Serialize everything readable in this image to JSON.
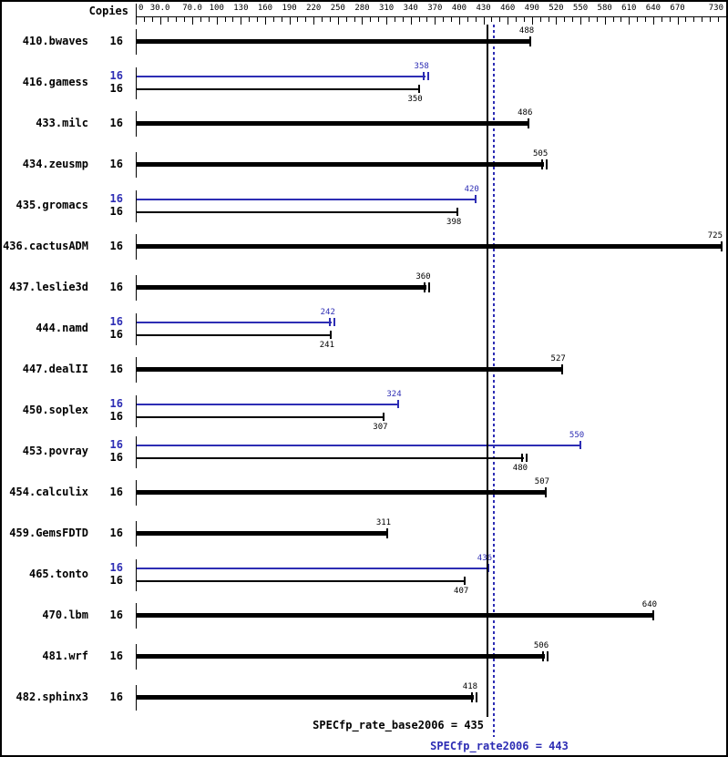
{
  "colors": {
    "base": "#000000",
    "peak": "#2d2db4",
    "background": "#ffffff"
  },
  "chart_data": {
    "type": "bar",
    "orientation": "horizontal",
    "copies_column_header": "Copies",
    "axis": {
      "min": 0,
      "max": 733,
      "minor_tick_step": 10,
      "labels": [
        {
          "value": 0,
          "text": "0"
        },
        {
          "value": 30,
          "text": "30.0"
        },
        {
          "value": 70,
          "text": "70.0"
        },
        {
          "value": 100,
          "text": "100"
        },
        {
          "value": 130,
          "text": "130"
        },
        {
          "value": 160,
          "text": "160"
        },
        {
          "value": 190,
          "text": "190"
        },
        {
          "value": 220,
          "text": "220"
        },
        {
          "value": 250,
          "text": "250"
        },
        {
          "value": 280,
          "text": "280"
        },
        {
          "value": 310,
          "text": "310"
        },
        {
          "value": 340,
          "text": "340"
        },
        {
          "value": 370,
          "text": "370"
        },
        {
          "value": 400,
          "text": "400"
        },
        {
          "value": 430,
          "text": "430"
        },
        {
          "value": 460,
          "text": "460"
        },
        {
          "value": 490,
          "text": "490"
        },
        {
          "value": 520,
          "text": "520"
        },
        {
          "value": 550,
          "text": "550"
        },
        {
          "value": 580,
          "text": "580"
        },
        {
          "value": 610,
          "text": "610"
        },
        {
          "value": 640,
          "text": "640"
        },
        {
          "value": 670,
          "text": "670"
        },
        {
          "value": 730,
          "text": "730"
        }
      ]
    },
    "benchmarks": [
      {
        "name": "410.bwaves",
        "bars": [
          {
            "kind": "base",
            "copies": 16,
            "value": 488,
            "cap": "single"
          }
        ]
      },
      {
        "name": "416.gamess",
        "bars": [
          {
            "kind": "peak",
            "copies": 16,
            "value": 358,
            "cap": "double"
          },
          {
            "kind": "base",
            "copies": 16,
            "value": 350,
            "cap": "single"
          }
        ]
      },
      {
        "name": "433.milc",
        "bars": [
          {
            "kind": "base",
            "copies": 16,
            "value": 486,
            "cap": "single"
          }
        ]
      },
      {
        "name": "434.zeusmp",
        "bars": [
          {
            "kind": "base",
            "copies": 16,
            "value": 505,
            "cap": "double"
          }
        ]
      },
      {
        "name": "435.gromacs",
        "bars": [
          {
            "kind": "peak",
            "copies": 16,
            "value": 420,
            "cap": "single"
          },
          {
            "kind": "base",
            "copies": 16,
            "value": 398,
            "cap": "single"
          }
        ]
      },
      {
        "name": "436.cactusADM",
        "bars": [
          {
            "kind": "base",
            "copies": 16,
            "value": 725,
            "cap": "single"
          }
        ]
      },
      {
        "name": "437.leslie3d",
        "bars": [
          {
            "kind": "base",
            "copies": 16,
            "value": 360,
            "cap": "double"
          }
        ]
      },
      {
        "name": "444.namd",
        "bars": [
          {
            "kind": "peak",
            "copies": 16,
            "value": 242,
            "cap": "double"
          },
          {
            "kind": "base",
            "copies": 16,
            "value": 241,
            "cap": "single"
          }
        ]
      },
      {
        "name": "447.dealII",
        "bars": [
          {
            "kind": "base",
            "copies": 16,
            "value": 527,
            "cap": "single"
          }
        ]
      },
      {
        "name": "450.soplex",
        "bars": [
          {
            "kind": "peak",
            "copies": 16,
            "value": 324,
            "cap": "single"
          },
          {
            "kind": "base",
            "copies": 16,
            "value": 307,
            "cap": "single"
          }
        ]
      },
      {
        "name": "453.povray",
        "bars": [
          {
            "kind": "peak",
            "copies": 16,
            "value": 550,
            "cap": "single"
          },
          {
            "kind": "base",
            "copies": 16,
            "value": 480,
            "cap": "double"
          }
        ]
      },
      {
        "name": "454.calculix",
        "bars": [
          {
            "kind": "base",
            "copies": 16,
            "value": 507,
            "cap": "single"
          }
        ]
      },
      {
        "name": "459.GemsFDTD",
        "bars": [
          {
            "kind": "base",
            "copies": 16,
            "value": 311,
            "cap": "single"
          }
        ]
      },
      {
        "name": "465.tonto",
        "bars": [
          {
            "kind": "peak",
            "copies": 16,
            "value": 436,
            "cap": "single"
          },
          {
            "kind": "base",
            "copies": 16,
            "value": 407,
            "cap": "single"
          }
        ]
      },
      {
        "name": "470.lbm",
        "bars": [
          {
            "kind": "base",
            "copies": 16,
            "value": 640,
            "cap": "single"
          }
        ]
      },
      {
        "name": "481.wrf",
        "bars": [
          {
            "kind": "base",
            "copies": 16,
            "value": 506,
            "cap": "double"
          }
        ]
      },
      {
        "name": "482.sphinx3",
        "bars": [
          {
            "kind": "base",
            "copies": 16,
            "value": 418,
            "cap": "double"
          }
        ]
      }
    ],
    "reference_lines": [
      {
        "name": "base_median",
        "value": 435,
        "style": "solid",
        "color": "#000000",
        "label": "SPECfp_rate_base2006 = 435"
      },
      {
        "name": "peak_median",
        "value": 443,
        "style": "dotted",
        "color": "#2d2db4",
        "label": "SPECfp_rate2006 = 443"
      }
    ]
  }
}
